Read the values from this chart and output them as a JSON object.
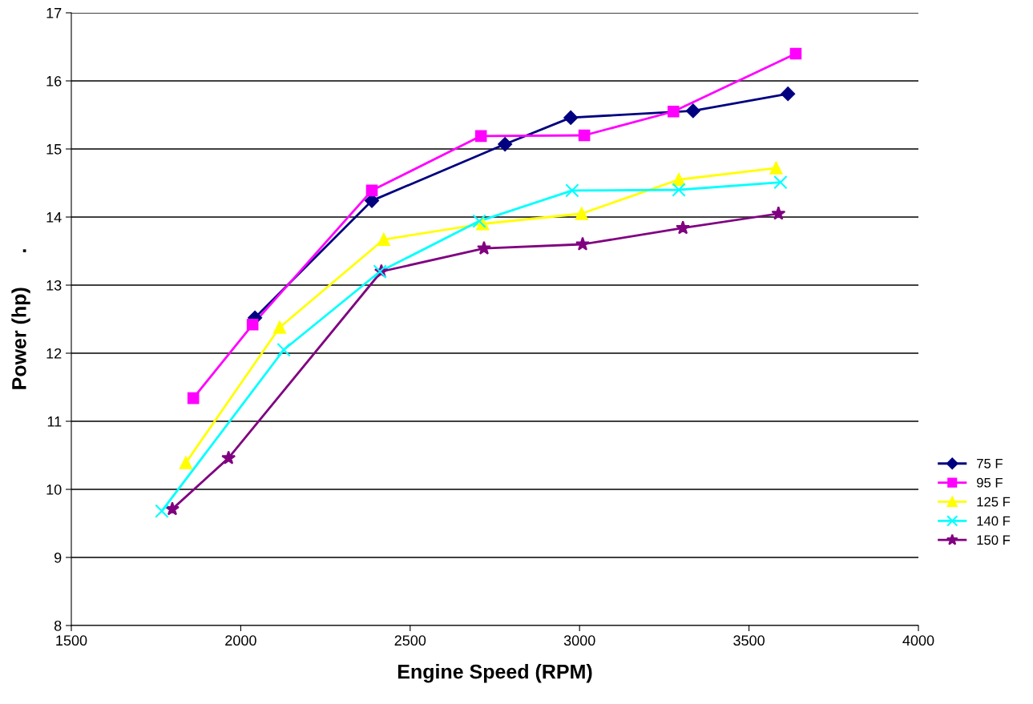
{
  "chart_data": {
    "type": "line",
    "xlabel": "Engine Speed (RPM)",
    "ylabel": "Power (hp)      .",
    "xlim": [
      1500,
      4000
    ],
    "xticks": [
      1500,
      2000,
      2500,
      3000,
      3500,
      4000
    ],
    "ylim": [
      8,
      17
    ],
    "yticks": [
      8,
      9,
      10,
      11,
      12,
      13,
      14,
      15,
      16,
      17
    ],
    "grid": "y",
    "legend": "right",
    "series": [
      {
        "name": "75 F",
        "color": "#000080",
        "marker": "diamond",
        "x": [
          2042,
          2387,
          2780,
          2974,
          3335,
          3615
        ],
        "values": [
          12.52,
          14.24,
          15.07,
          15.46,
          15.56,
          15.81
        ]
      },
      {
        "name": "95 F",
        "color": "#ff00ff",
        "marker": "square",
        "x": [
          1860,
          2035,
          2387,
          2709,
          3014,
          3277,
          3638
        ],
        "values": [
          11.34,
          12.42,
          14.39,
          15.19,
          15.2,
          15.55,
          16.4
        ]
      },
      {
        "name": "125 F",
        "color": "#ffff00",
        "marker": "triangle",
        "x": [
          1838,
          2115,
          2422,
          2714,
          3006,
          3293,
          3580
        ],
        "values": [
          10.39,
          12.38,
          13.67,
          13.9,
          14.05,
          14.55,
          14.72
        ]
      },
      {
        "name": "140 F",
        "color": "#00ffff",
        "marker": "cross",
        "x": [
          1767,
          2127,
          2411,
          2704,
          2978,
          3293,
          3593
        ],
        "values": [
          9.68,
          12.05,
          13.2,
          13.94,
          14.39,
          14.4,
          14.51
        ]
      },
      {
        "name": "150 F",
        "color": "#800080",
        "marker": "star",
        "x": [
          1798,
          1964,
          2415,
          2718,
          3009,
          3305,
          3587
        ],
        "values": [
          9.71,
          10.46,
          13.2,
          13.54,
          13.6,
          13.84,
          14.05
        ]
      }
    ]
  }
}
